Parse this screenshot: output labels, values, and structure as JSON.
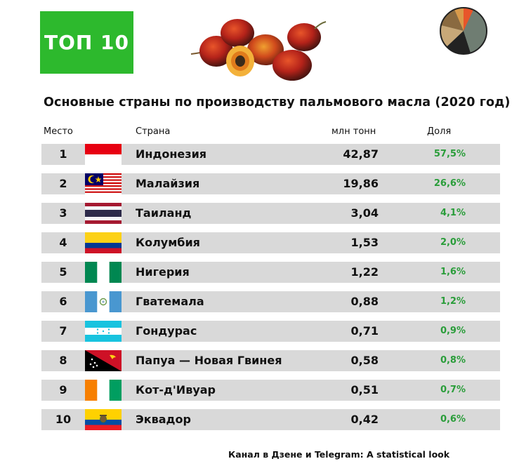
{
  "badge": "ТОП 10",
  "chart_data": {
    "type": "table",
    "title": "Основные страны по производству пальмового масла (2020 год)",
    "columns": [
      "Место",
      "Страна",
      "млн тонн",
      "Доля"
    ],
    "rows": [
      {
        "rank": "1",
        "country": "Индонезия",
        "value": "42,87",
        "share": "57,5%",
        "flag": "indonesia"
      },
      {
        "rank": "2",
        "country": "Малайзия",
        "value": "19,86",
        "share": "26,6%",
        "flag": "malaysia"
      },
      {
        "rank": "3",
        "country": "Таиланд",
        "value": "3,04",
        "share": "4,1%",
        "flag": "thailand"
      },
      {
        "rank": "4",
        "country": "Колумбия",
        "value": "1,53",
        "share": "2,0%",
        "flag": "colombia"
      },
      {
        "rank": "5",
        "country": "Нигерия",
        "value": "1,22",
        "share": "1,6%",
        "flag": "nigeria"
      },
      {
        "rank": "6",
        "country": "Гватемала",
        "value": "0,88",
        "share": "1,2%",
        "flag": "guatemala"
      },
      {
        "rank": "7",
        "country": "Гондурас",
        "value": "0,71",
        "share": "0,9%",
        "flag": "honduras"
      },
      {
        "rank": "8",
        "country": "Папуа — Новая Гвинея",
        "value": "0,58",
        "share": "0,8%",
        "flag": "papua-new-guinea"
      },
      {
        "rank": "9",
        "country": "Кот-д'Ивуар",
        "value": "0,51",
        "share": "0,7%",
        "flag": "cote-divoire"
      },
      {
        "rank": "10",
        "country": "Эквадор",
        "value": "0,42",
        "share": "0,6%",
        "flag": "ecuador"
      }
    ]
  },
  "footer": "Канал в Дзене и Telegram: A statistical look",
  "colors": {
    "badge": "#2db92d",
    "row": "#d9d9d9",
    "share": "#2a9d3a"
  },
  "icons": {
    "fruit": "palm-fruit-icon",
    "pie": "pie-chart-icon"
  }
}
